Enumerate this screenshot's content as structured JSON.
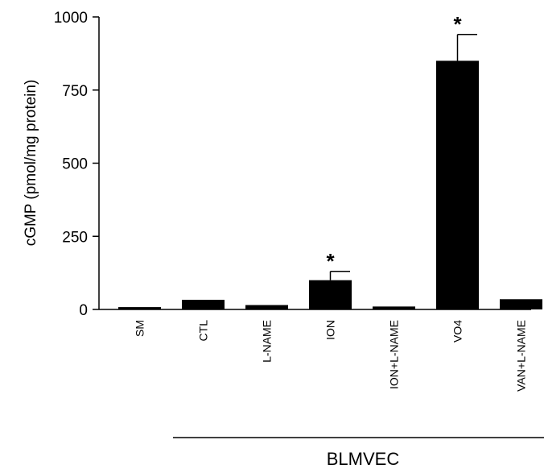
{
  "chart_data": {
    "type": "bar",
    "categories": [
      "SM",
      "CTL",
      "L-NAME",
      "ION",
      "ION+L-NAME",
      "VO4",
      "VAN+L-NAME"
    ],
    "values": [
      8,
      33,
      15,
      100,
      10,
      850,
      35
    ],
    "errors": [
      0,
      0,
      0,
      30,
      0,
      90,
      0
    ],
    "significance": [
      "",
      "",
      "",
      "*",
      "",
      "*",
      ""
    ],
    "ylabel": "cGMP (pmol/mg protein)",
    "ylim": [
      0,
      1000
    ],
    "yticks": [
      0,
      250,
      500,
      750,
      1000
    ],
    "group": {
      "label": "BLMVEC",
      "start_category": "CTL",
      "end_category": "VAN+L-NAME"
    },
    "bar_color": "#000000",
    "grid": false
  }
}
